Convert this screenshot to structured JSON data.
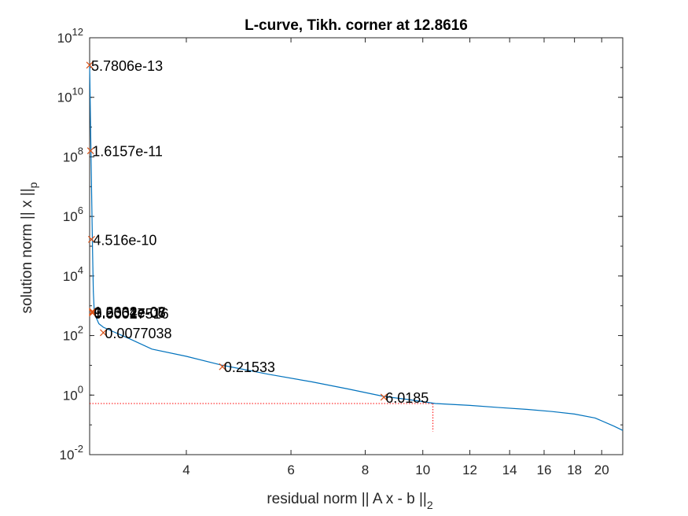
{
  "chart_data": {
    "type": "line",
    "title": "L-curve, Tikh. corner at 12.8616",
    "xlabel": "residual norm || A x - b ||",
    "xlabel_sub": "2",
    "ylabel": "solution norm || x ||",
    "ylabel_sub": "p",
    "xscale": "log",
    "yscale": "log",
    "xlim": [
      2.75,
      21.7
    ],
    "ylim": [
      0.01,
      1000000000000.0
    ],
    "x_ticks": [
      4,
      6,
      8,
      10,
      12,
      14,
      16,
      18,
      20
    ],
    "x_tick_labels": [
      "4",
      "6",
      "8",
      "10",
      "12",
      "14",
      "16",
      "18",
      "20"
    ],
    "y_ticks": [
      0.01,
      1,
      100,
      10000,
      1000000,
      100000000,
      10000000000,
      1000000000000
    ],
    "y_tick_labels": [
      {
        "base": "10",
        "exp": "-2"
      },
      {
        "base": "10",
        "exp": "0"
      },
      {
        "base": "10",
        "exp": "2"
      },
      {
        "base": "10",
        "exp": "4"
      },
      {
        "base": "10",
        "exp": "6"
      },
      {
        "base": "10",
        "exp": "8"
      },
      {
        "base": "10",
        "exp": "10"
      },
      {
        "base": "10",
        "exp": "12"
      }
    ],
    "curve": [
      [
        2.75,
        120000000000.0
      ],
      [
        2.76,
        1000000000.0
      ],
      [
        2.77,
        10000000.0
      ],
      [
        2.78,
        100000.0
      ],
      [
        2.79,
        3000
      ],
      [
        2.8,
        600
      ],
      [
        2.82,
        400
      ],
      [
        2.85,
        250
      ],
      [
        2.9,
        190
      ],
      [
        3.0,
        140
      ],
      [
        3.2,
        80
      ],
      [
        3.5,
        35
      ],
      [
        4.0,
        20
      ],
      [
        4.6,
        10
      ],
      [
        5.5,
        5
      ],
      [
        6.5,
        2.8
      ],
      [
        7.5,
        1.6
      ],
      [
        8.6,
        0.9
      ],
      [
        9.5,
        0.7
      ],
      [
        10.5,
        0.52
      ],
      [
        12.0,
        0.45
      ],
      [
        13.5,
        0.38
      ],
      [
        15.0,
        0.33
      ],
      [
        16.5,
        0.28
      ],
      [
        18.0,
        0.23
      ],
      [
        19.5,
        0.17
      ],
      [
        21.0,
        0.09
      ],
      [
        21.7,
        0.065
      ]
    ],
    "markers": [
      {
        "x": 2.75,
        "y": 120000000000.0,
        "label": "5.7806e-13"
      },
      {
        "x": 2.76,
        "y": 160000000.0,
        "label": "1.6157e-11"
      },
      {
        "x": 2.77,
        "y": 170000.0,
        "label": "4.516e-10"
      },
      {
        "x": 2.78,
        "y": 650,
        "label": "1.2632e-08"
      },
      {
        "x": 2.78,
        "y": 620,
        "label": "3.5364e-07"
      },
      {
        "x": 2.78,
        "y": 600,
        "label": "9.9001e-06"
      },
      {
        "x": 2.78,
        "y": 570,
        "label": "0.00027516"
      },
      {
        "x": 2.9,
        "y": 125,
        "label": "0.0077038"
      },
      {
        "x": 4.6,
        "y": 9,
        "label": "0.21533"
      },
      {
        "x": 8.6,
        "y": 0.85,
        "label": "6.0185"
      }
    ],
    "corner": {
      "x": 10.4,
      "y": 0.52
    },
    "corner_y_floor": 0.06,
    "colors": {
      "curve": "#0072bd",
      "marker": "#d95319",
      "corner": "#ff0000",
      "axis": "#262626"
    }
  }
}
